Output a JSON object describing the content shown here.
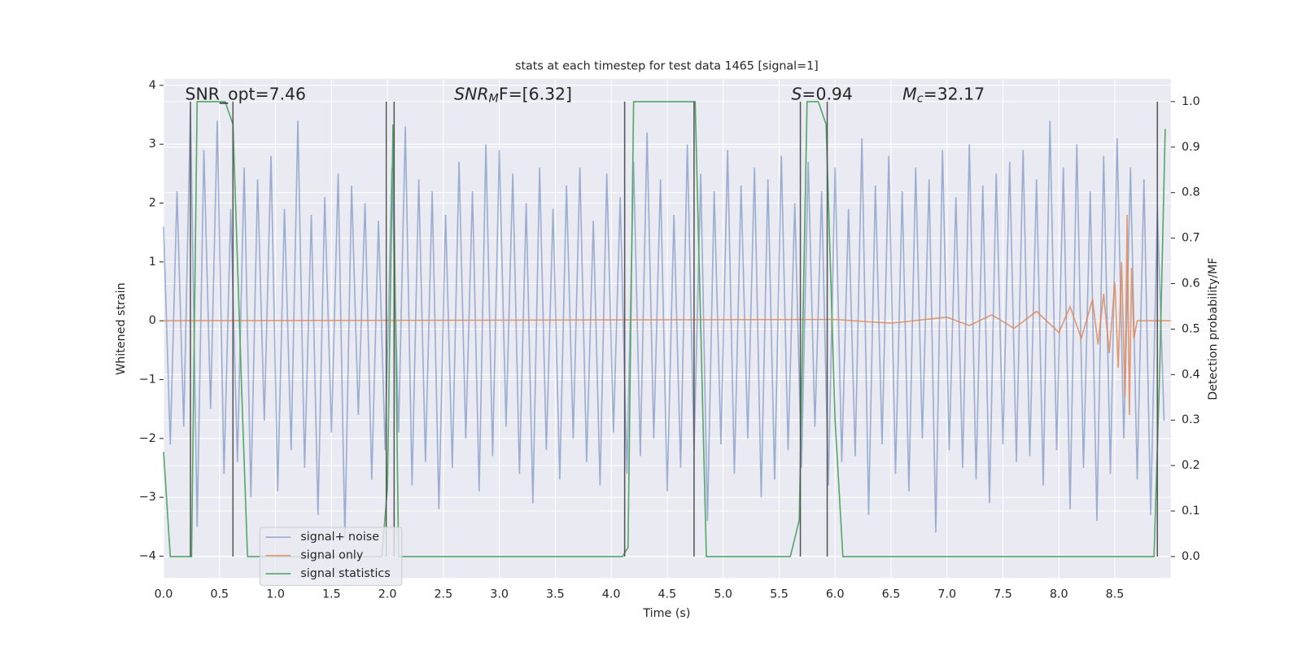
{
  "chart_data": {
    "type": "line",
    "title": "stats at each timestep for test data 1465 [signal=1]",
    "xlabel": "Time (s)",
    "ylabel": "Whitened strain",
    "y2label": "Detection probability/MF",
    "xlim": [
      0,
      9.0
    ],
    "ylim": [
      -4.37,
      4.11
    ],
    "y2lim": [
      -0.047,
      1.05
    ],
    "xticks": [
      {
        "value": 0,
        "label": "0.0"
      },
      0.5,
      {
        "value": 1,
        "label": "1.0"
      },
      1.5,
      {
        "value": 2,
        "label": "2.0"
      },
      2.5,
      {
        "value": 3,
        "label": "3.0"
      },
      3.5,
      {
        "value": 4,
        "label": "4.0"
      },
      4.5,
      {
        "value": 5,
        "label": "5.0"
      },
      5.5,
      {
        "value": 6,
        "label": "6.0"
      },
      6.5,
      {
        "value": 7,
        "label": "7.0"
      },
      7.5,
      {
        "value": 8,
        "label": "8.0"
      },
      8.5
    ],
    "yticks": [
      {
        "value": -4,
        "label": "−4"
      },
      {
        "value": -3,
        "label": "−3"
      },
      {
        "value": -2,
        "label": "−2"
      },
      {
        "value": -1,
        "label": "−1"
      },
      0,
      1,
      2,
      3,
      4
    ],
    "y2ticks": [
      {
        "value": 0,
        "label": "0.0"
      },
      0.1,
      0.2,
      0.3,
      0.4,
      0.5,
      0.6,
      0.7,
      0.8,
      0.9,
      {
        "value": 1,
        "label": "1.0"
      }
    ],
    "grid": true,
    "legend": "lower left",
    "annotations": [
      {
        "base": "SNR_opt=7.46",
        "math": false
      },
      {
        "base": "SNR",
        "sub": "M",
        "after": "F=[6.32]",
        "math": true
      },
      {
        "base": "S",
        "after": "=0.94",
        "math": true
      },
      {
        "base": "M",
        "sub": "c",
        "after": "=32.17",
        "math": true
      }
    ],
    "vlines": {
      "x": [
        0.24,
        0.62,
        1.99,
        2.06,
        4.12,
        4.74,
        5.69,
        5.93,
        8.88
      ],
      "color": "#555555"
    },
    "series": [
      {
        "name": "signal+ noise",
        "color": "#4c72b0",
        "opacity": 0.5,
        "x": [
          0,
          0.06,
          0.12,
          0.18,
          0.24,
          0.3,
          0.36,
          0.42,
          0.48,
          0.54,
          0.6,
          0.66,
          0.72,
          0.78,
          0.84,
          0.9,
          0.96,
          1.02,
          1.08,
          1.14,
          1.2,
          1.26,
          1.32,
          1.38,
          1.44,
          1.5,
          1.56,
          1.62,
          1.68,
          1.74,
          1.8,
          1.86,
          1.92,
          1.98,
          2.04,
          2.1,
          2.16,
          2.22,
          2.28,
          2.34,
          2.4,
          2.46,
          2.52,
          2.58,
          2.64,
          2.7,
          2.76,
          2.82,
          2.88,
          2.94,
          3.0,
          3.06,
          3.12,
          3.18,
          3.24,
          3.3,
          3.36,
          3.42,
          3.48,
          3.54,
          3.6,
          3.66,
          3.72,
          3.78,
          3.84,
          3.9,
          3.96,
          4.02,
          4.08,
          4.14,
          4.2,
          4.26,
          4.32,
          4.38,
          4.44,
          4.5,
          4.56,
          4.62,
          4.68,
          4.74,
          4.8,
          4.86,
          4.92,
          4.98,
          5.04,
          5.1,
          5.16,
          5.22,
          5.28,
          5.34,
          5.4,
          5.46,
          5.52,
          5.58,
          5.64,
          5.7,
          5.76,
          5.82,
          5.88,
          5.94,
          6.0,
          6.06,
          6.12,
          6.18,
          6.24,
          6.3,
          6.36,
          6.42,
          6.48,
          6.54,
          6.6,
          6.66,
          6.72,
          6.78,
          6.84,
          6.9,
          6.96,
          7.02,
          7.08,
          7.14,
          7.2,
          7.26,
          7.32,
          7.38,
          7.44,
          7.5,
          7.56,
          7.62,
          7.68,
          7.74,
          7.8,
          7.86,
          7.92,
          7.98,
          8.04,
          8.1,
          8.16,
          8.22,
          8.28,
          8.34,
          8.4,
          8.46,
          8.52,
          8.58,
          8.64,
          8.7,
          8.76,
          8.82,
          8.88,
          8.94
        ],
        "values": [
          1.6,
          -2.1,
          2.2,
          -1.8,
          3.6,
          -3.5,
          2.9,
          -1.5,
          3.4,
          -2.6,
          1.9,
          -2.4,
          2.6,
          -3.0,
          2.4,
          -1.7,
          2.8,
          -2.9,
          1.9,
          -2.2,
          3.4,
          -2.5,
          1.8,
          -3.3,
          2.1,
          -1.9,
          2.5,
          -3.7,
          2.3,
          -1.6,
          2.0,
          -2.7,
          1.7,
          -2.2,
          2.6,
          -1.9,
          3.3,
          -2.8,
          2.4,
          -2.4,
          2.2,
          -3.2,
          1.8,
          -2.5,
          2.7,
          -2.0,
          2.2,
          -2.9,
          3.0,
          -2.3,
          2.9,
          -1.8,
          2.5,
          -2.6,
          2.0,
          -3.1,
          2.6,
          -2.2,
          1.9,
          -2.7,
          2.3,
          -2.0,
          2.6,
          -2.4,
          1.7,
          -2.8,
          2.5,
          -1.9,
          2.1,
          -2.6,
          2.7,
          -2.3,
          3.2,
          -2.0,
          2.4,
          -2.9,
          1.8,
          -2.5,
          3.0,
          -2.2,
          2.5,
          -3.4,
          2.2,
          -2.1,
          2.9,
          -2.6,
          2.3,
          -2.0,
          2.6,
          -3.0,
          2.4,
          -2.7,
          2.8,
          -2.2,
          2.0,
          -2.5,
          2.7,
          -1.8,
          2.2,
          -2.8,
          2.6,
          -2.4,
          1.9,
          -2.3,
          3.1,
          -3.3,
          2.3,
          -2.1,
          2.8,
          -2.6,
          2.2,
          -2.9,
          2.6,
          -2.0,
          2.4,
          -3.6,
          2.9,
          -2.2,
          2.1,
          -2.5,
          3.0,
          -2.7,
          2.3,
          -3.1,
          2.5,
          -2.1,
          2.7,
          -2.4,
          2.9,
          -2.3,
          2.4,
          -2.8,
          3.4,
          -2.2,
          2.6,
          -3.2,
          3.0,
          -2.5,
          2.2,
          -3.4,
          2.8,
          -2.6,
          3.1,
          -2.0,
          2.6,
          -2.7,
          2.4,
          -3.3,
          1.9,
          -1.7
        ]
      },
      {
        "name": "signal only",
        "color": "#dd8452",
        "opacity": 0.8,
        "x": [
          0,
          6.0,
          6.5,
          7.0,
          7.2,
          7.4,
          7.6,
          7.8,
          8.0,
          8.1,
          8.2,
          8.3,
          8.35,
          8.4,
          8.45,
          8.5,
          8.53,
          8.56,
          8.59,
          8.61,
          8.63,
          8.65,
          8.67,
          8.7,
          9.0
        ],
        "values": [
          0,
          0.02,
          -0.04,
          0.06,
          -0.08,
          0.1,
          -0.13,
          0.16,
          -0.2,
          0.24,
          -0.3,
          0.36,
          -0.4,
          0.46,
          -0.55,
          0.65,
          -0.8,
          1.0,
          -1.3,
          1.8,
          -1.6,
          0.9,
          -0.3,
          0,
          0
        ]
      },
      {
        "name": "signal statistics",
        "color": "#55a868",
        "opacity": 1,
        "axis": "y2",
        "x": [
          0,
          0.06,
          0.25,
          0.3,
          0.55,
          0.62,
          0.7,
          0.75,
          1.95,
          2.0,
          2.05,
          2.1,
          4.1,
          4.15,
          4.2,
          4.75,
          4.85,
          5.6,
          5.68,
          5.75,
          5.85,
          5.92,
          6.0,
          6.07,
          8.85,
          8.9,
          8.95
        ],
        "values": [
          0.23,
          0,
          0,
          1.0,
          1.0,
          0.95,
          0.35,
          0,
          0,
          0.15,
          0.95,
          0,
          0,
          0.02,
          1.0,
          1.0,
          0,
          0,
          0.08,
          1.0,
          1.0,
          0.95,
          0.3,
          0,
          0,
          0.4,
          0.94
        ]
      }
    ]
  }
}
